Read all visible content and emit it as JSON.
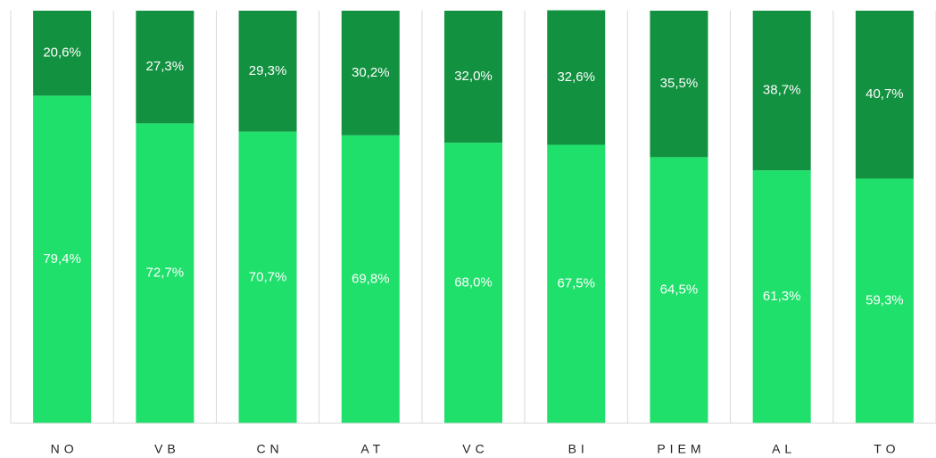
{
  "chart_data": {
    "type": "stacked_bar",
    "categories": [
      "NO",
      "VB",
      "CN",
      "AT",
      "VC",
      "BI",
      "PIEM",
      "AL",
      "TO"
    ],
    "series": [
      {
        "color": "#1fe06b",
        "values": [
          79.4,
          72.7,
          70.7,
          69.8,
          68.0,
          67.5,
          64.5,
          61.3,
          59.3
        ],
        "value_labels": [
          "79,4%",
          "72,7%",
          "70,7%",
          "69,8%",
          "68,0%",
          "67,5%",
          "64,5%",
          "61,3%",
          "59,3%"
        ]
      },
      {
        "color": "#129140",
        "values": [
          20.6,
          27.3,
          29.3,
          30.2,
          32.0,
          32.6,
          35.5,
          38.7,
          40.7
        ],
        "value_labels": [
          "20,6%",
          "27,3%",
          "29,3%",
          "30,2%",
          "32,0%",
          "32,6%",
          "35,5%",
          "38,7%",
          "40,7%"
        ]
      }
    ],
    "ylim": [
      0,
      100
    ]
  }
}
